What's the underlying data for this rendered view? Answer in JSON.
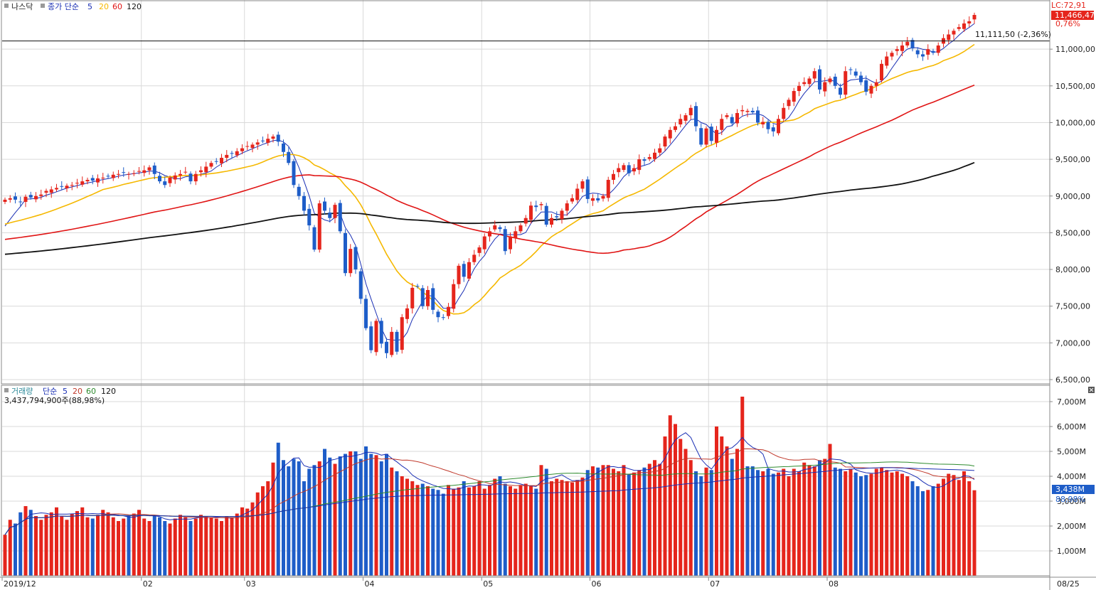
{
  "price_legend": {
    "symbol": "나스닥",
    "ma_label": "종가 단순",
    "periods": [
      "5",
      "20",
      "60",
      "120"
    ]
  },
  "volume_legend": {
    "symbol": "거래량",
    "ma_label": "단순",
    "periods": [
      "5",
      "20",
      "60",
      "120"
    ],
    "last_volume_text": "3,437,794,900주(88,98%)"
  },
  "price_tags": {
    "lc_text": "LC:72,91",
    "last_price_text": "11,466,47",
    "change_text": "0,76%",
    "hline_text": "11,111,50 (-2,36%)",
    "hline_value": 11111.5
  },
  "volume_tags": {
    "last_text": "3,438M",
    "pct_text": "88,98%"
  },
  "axis": {
    "x_labels": [
      "2019/12",
      "02",
      "03",
      "04",
      "05",
      "06",
      "07",
      "08",
      "08/25"
    ],
    "price_ticks": [
      "6,500,00",
      "7,000,00",
      "7,500,00",
      "8,000,00",
      "8,500,00",
      "9,000,00",
      "9,500,00",
      "10,000,00",
      "10,500,00",
      "11,000,00"
    ],
    "volume_ticks": [
      "1,000M",
      "2,000M",
      "3,000M",
      "4,000M",
      "5,000M",
      "6,000M",
      "7,000M"
    ]
  },
  "colors": {
    "up": "#e5251c",
    "down": "#1e5dc8",
    "ma5": "#1a2fb4",
    "ma20": "#f5b800",
    "ma60": "#e01414",
    "ma120": "#111111",
    "vma20": "#c0392b",
    "vma60": "#2e8b2e",
    "vma120": "#1a2fb4"
  },
  "chart_data": {
    "type": "candlestick",
    "price_range": [
      6500,
      11500
    ],
    "volume_range_millions": [
      0,
      7000
    ],
    "price_ma_periods": [
      5,
      20,
      60,
      120
    ],
    "volume_ma_periods": [
      5,
      20,
      60,
      120
    ],
    "close_series": [
      8950,
      8970,
      8950,
      8920,
      8990,
      8980,
      9000,
      9020,
      9070,
      9090,
      9110,
      9130,
      9140,
      9150,
      9180,
      9200,
      9220,
      9210,
      9240,
      9250,
      9270,
      9290,
      9300,
      9320,
      9300,
      9310,
      9340,
      9350,
      9390,
      9300,
      9200,
      9150,
      9250,
      9280,
      9300,
      9330,
      9200,
      9300,
      9350,
      9400,
      9450,
      9470,
      9520,
      9560,
      9580,
      9610,
      9650,
      9680,
      9700,
      9730,
      9750,
      9780,
      9810,
      9740,
      9600,
      9450,
      9150,
      9000,
      8800,
      8600,
      8270,
      8900,
      8800,
      8700,
      8880,
      8520,
      7950,
      8280,
      8000,
      7600,
      7200,
      6900,
      7300,
      6990,
      6860,
      7150,
      6880,
      7350,
      7470,
      7750,
      7770,
      7500,
      7720,
      7450,
      7350,
      7340,
      7490,
      7800,
      8050,
      7900,
      8100,
      8200,
      8300,
      8450,
      8520,
      8600,
      8550,
      8250,
      8450,
      8520,
      8600,
      8700,
      8870,
      8850,
      8890,
      8610,
      8700,
      8710,
      8800,
      8900,
      8970,
      9100,
      9200,
      8960,
      8970,
      8940,
      9000,
      9220,
      9300,
      9380,
      9420,
      9310,
      9380,
      9500,
      9480,
      9530,
      9590,
      9650,
      9810,
      9900,
      9950,
      10050,
      10100,
      10200,
      9950,
      9700,
      9920,
      9750,
      9900,
      10050,
      10100,
      9990,
      10130,
      10170,
      10160,
      10140,
      10000,
      10010,
      9910,
      9880,
      10050,
      10200,
      10310,
      10430,
      10500,
      10550,
      10600,
      10700,
      10450,
      10550,
      10600,
      10500,
      10380,
      10700,
      10720,
      10640,
      10550,
      10420,
      10500,
      10550,
      10800,
      10900,
      10950,
      11000,
      11050,
      11100,
      11010,
      10930,
      10900,
      11000,
      10950,
      11050,
      11150,
      11200,
      11250,
      11300,
      11350,
      11380,
      11466
    ],
    "volume_series_millions": [
      1650,
      2250,
      2100,
      2550,
      2800,
      2650,
      2400,
      2250,
      2450,
      2550,
      2750,
      2400,
      2250,
      2500,
      2600,
      2750,
      2350,
      2300,
      2450,
      2650,
      2550,
      2350,
      2200,
      2300,
      2400,
      2500,
      2650,
      2300,
      2200,
      2400,
      2350,
      2200,
      2100,
      2300,
      2450,
      2350,
      2200,
      2300,
      2450,
      2400,
      2350,
      2300,
      2200,
      2400,
      2350,
      2500,
      2750,
      2700,
      2950,
      3350,
      3600,
      3800,
      4550,
      5350,
      4650,
      4400,
      4700,
      4600,
      3800,
      4300,
      4450,
      4600,
      5100,
      4750,
      4500,
      4800,
      4900,
      5000,
      5000,
      4700,
      5200,
      4900,
      4850,
      4600,
      4900,
      4350,
      4200,
      4000,
      3900,
      3800,
      3650,
      3700,
      3600,
      3500,
      3450,
      3300,
      3650,
      3500,
      3550,
      3800,
      3550,
      3600,
      3800,
      3500,
      3650,
      3900,
      4000,
      3700,
      3600,
      3500,
      3650,
      3700,
      3600,
      3500,
      4450,
      4300,
      3800,
      3900,
      3850,
      3800,
      3750,
      3850,
      3950,
      4250,
      4400,
      4350,
      4450,
      4450,
      4300,
      4200,
      4450,
      4100,
      4150,
      4250,
      4350,
      4500,
      4650,
      4500,
      5600,
      6450,
      6100,
      5500,
      5100,
      4650,
      4200,
      4000,
      4350,
      4250,
      6000,
      5600,
      5200,
      4700,
      5100,
      7200,
      4400,
      4400,
      4250,
      4200,
      4300,
      4100,
      4150,
      4300,
      4000,
      4300,
      4200,
      4550,
      4450,
      4400,
      4650,
      4700,
      5300,
      4350,
      4300,
      4200,
      4300,
      4150,
      4000,
      4050,
      4100,
      4300,
      4350,
      4250,
      4150,
      4200,
      4100,
      4000,
      3800,
      3600,
      3400,
      3450,
      3600,
      3700,
      3900,
      4100,
      4050,
      3850,
      4200,
      3800,
      3438
    ]
  }
}
